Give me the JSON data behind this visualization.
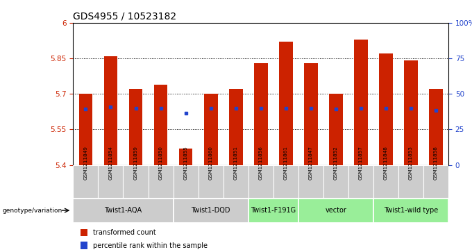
{
  "title": "GDS4955 / 10523182",
  "samples": [
    "GSM1211849",
    "GSM1211854",
    "GSM1211859",
    "GSM1211850",
    "GSM1211855",
    "GSM1211860",
    "GSM1211851",
    "GSM1211856",
    "GSM1211861",
    "GSM1211847",
    "GSM1211852",
    "GSM1211857",
    "GSM1211848",
    "GSM1211853",
    "GSM1211858"
  ],
  "bar_tops": [
    5.7,
    5.86,
    5.72,
    5.74,
    5.47,
    5.7,
    5.72,
    5.83,
    5.92,
    5.83,
    5.7,
    5.93,
    5.87,
    5.84,
    5.72
  ],
  "blue_vals": [
    5.635,
    5.645,
    5.64,
    5.64,
    5.62,
    5.638,
    5.638,
    5.64,
    5.64,
    5.64,
    5.635,
    5.638,
    5.638,
    5.638,
    5.63
  ],
  "bar_base": 5.4,
  "ymin": 5.4,
  "ymax": 6.0,
  "yticks": [
    5.4,
    5.55,
    5.7,
    5.85,
    6.0
  ],
  "ytick_labels": [
    "5.4",
    "5.55",
    "5.7",
    "5.85",
    "6"
  ],
  "right_yticks": [
    0,
    25,
    50,
    75,
    100
  ],
  "right_ytick_labels": [
    "0",
    "25",
    "50",
    "75",
    "100%"
  ],
  "bar_color": "#cc2200",
  "blue_color": "#2244cc",
  "groups": [
    {
      "label": "Twist1-AQA",
      "indices": [
        0,
        1,
        2,
        3
      ],
      "color": "#cccccc"
    },
    {
      "label": "Twist1-DQD",
      "indices": [
        4,
        5,
        6
      ],
      "color": "#cccccc"
    },
    {
      "label": "Twist1-F191G",
      "indices": [
        7,
        8
      ],
      "color": "#99ee99"
    },
    {
      "label": "vector",
      "indices": [
        9,
        10,
        11
      ],
      "color": "#99ee99"
    },
    {
      "label": "Twist1-wild type",
      "indices": [
        12,
        13,
        14
      ],
      "color": "#99ee99"
    }
  ],
  "genotype_label": "genotype/variation",
  "legend_red": "transformed count",
  "legend_blue": "percentile rank within the sample",
  "bar_width": 0.55,
  "grid_vals": [
    5.55,
    5.7,
    5.85
  ],
  "title_fontsize": 10,
  "tick_fontsize": 7.5,
  "label_fontsize": 7,
  "fig_bg": "#ffffff"
}
